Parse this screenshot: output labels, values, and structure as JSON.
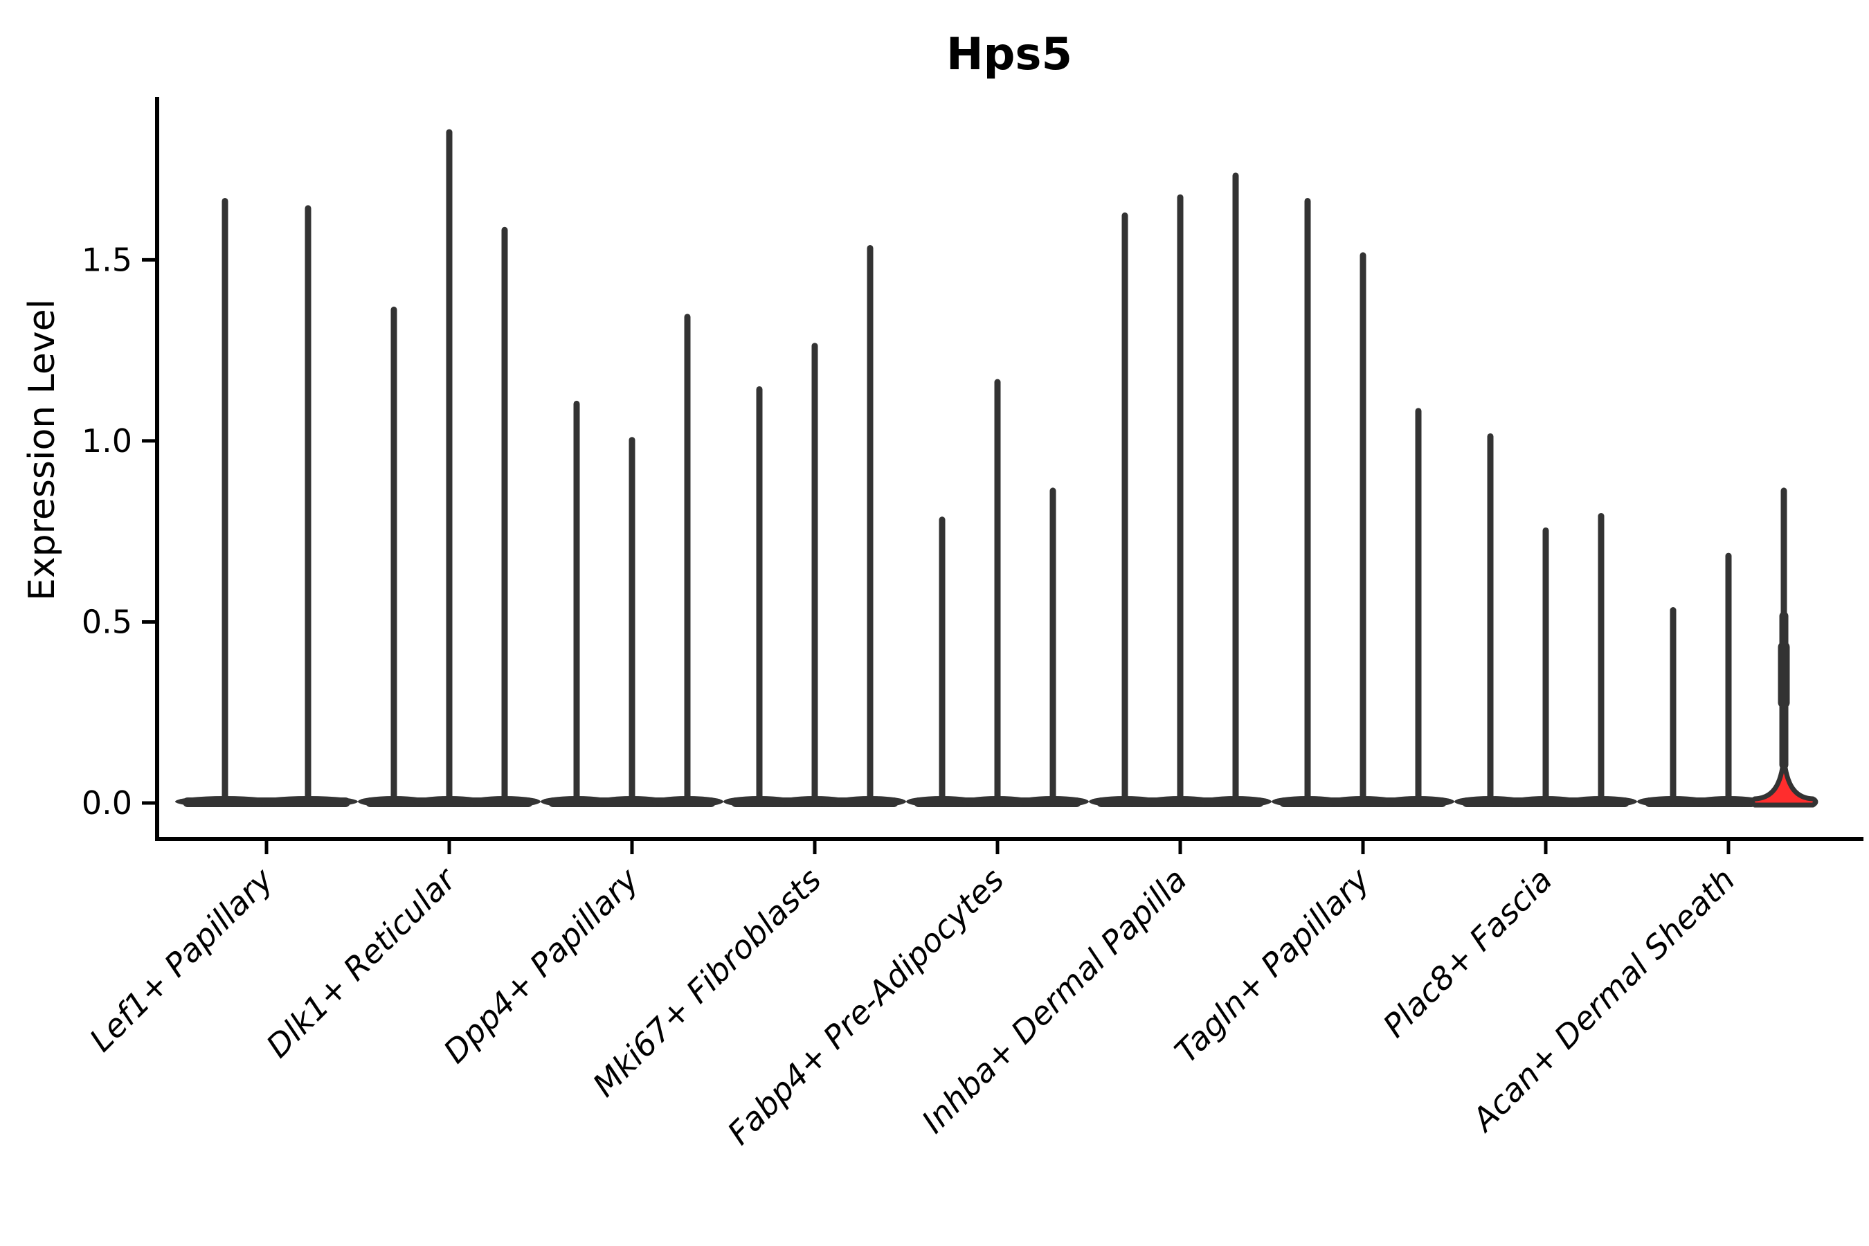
{
  "chart_data": {
    "type": "violin",
    "title": "Hps5",
    "ylabel": "Expression Level",
    "xlabel": "",
    "ylim": [
      0,
      1.95
    ],
    "yticks": [
      0,
      0.5,
      1.0,
      1.5
    ],
    "ytick_labels": [
      "0.0",
      "0.5",
      "1.0",
      "1.5"
    ],
    "grid": false,
    "legend_position": "none",
    "outline_color": "#333333",
    "spine_color": "#000000",
    "highlight_fill": "#FF2D2D",
    "background_color": "#ffffff",
    "categories": [
      "Lef1+ Papillary",
      "Dlk1+ Reticular",
      "Dpp4+ Papillary",
      "Mki67+ Fibroblasts",
      "Fabp4+ Pre-Adipocytes",
      "Inhba+ Dermal Papilla",
      "Tagln+ Papillary",
      "Plac8+ Fascia",
      "Acan+ Dermal Sheath"
    ],
    "groups": [
      {
        "category": "Lef1+ Papillary",
        "violin_max_values": [
          1.67,
          1.65
        ],
        "fills": [
          "none",
          "none"
        ]
      },
      {
        "category": "Dlk1+ Reticular",
        "violin_max_values": [
          1.37,
          1.86,
          1.59
        ],
        "fills": [
          "none",
          "none",
          "none"
        ]
      },
      {
        "category": "Dpp4+ Papillary",
        "violin_max_values": [
          1.11,
          1.01,
          1.35
        ],
        "fills": [
          "none",
          "none",
          "none"
        ]
      },
      {
        "category": "Mki67+ Fibroblasts",
        "violin_max_values": [
          1.15,
          1.27,
          1.54
        ],
        "fills": [
          "none",
          "none",
          "none"
        ]
      },
      {
        "category": "Fabp4+ Pre-Adipocytes",
        "violin_max_values": [
          0.79,
          1.17,
          0.87
        ],
        "fills": [
          "none",
          "none",
          "none"
        ]
      },
      {
        "category": "Inhba+ Dermal Papilla",
        "violin_max_values": [
          1.63,
          1.68,
          1.74
        ],
        "fills": [
          "none",
          "none",
          "none"
        ]
      },
      {
        "category": "Tagln+ Papillary",
        "violin_max_values": [
          1.67,
          1.52,
          1.09
        ],
        "fills": [
          "none",
          "none",
          "none"
        ]
      },
      {
        "category": "Plac8+ Fascia",
        "violin_max_values": [
          1.02,
          0.76,
          0.8
        ],
        "fills": [
          "none",
          "none",
          "none"
        ]
      },
      {
        "category": "Acan+ Dermal Sheath",
        "violin_max_values": [
          0.54,
          0.69,
          0.87
        ],
        "fills": [
          "none",
          "none",
          "#FF2D2D"
        ]
      }
    ],
    "annotation": "all violins collapse to thin spikes with density mass at 0; only the third Acan+ Dermal Sheath violin is red-filled with a visible flared base"
  }
}
